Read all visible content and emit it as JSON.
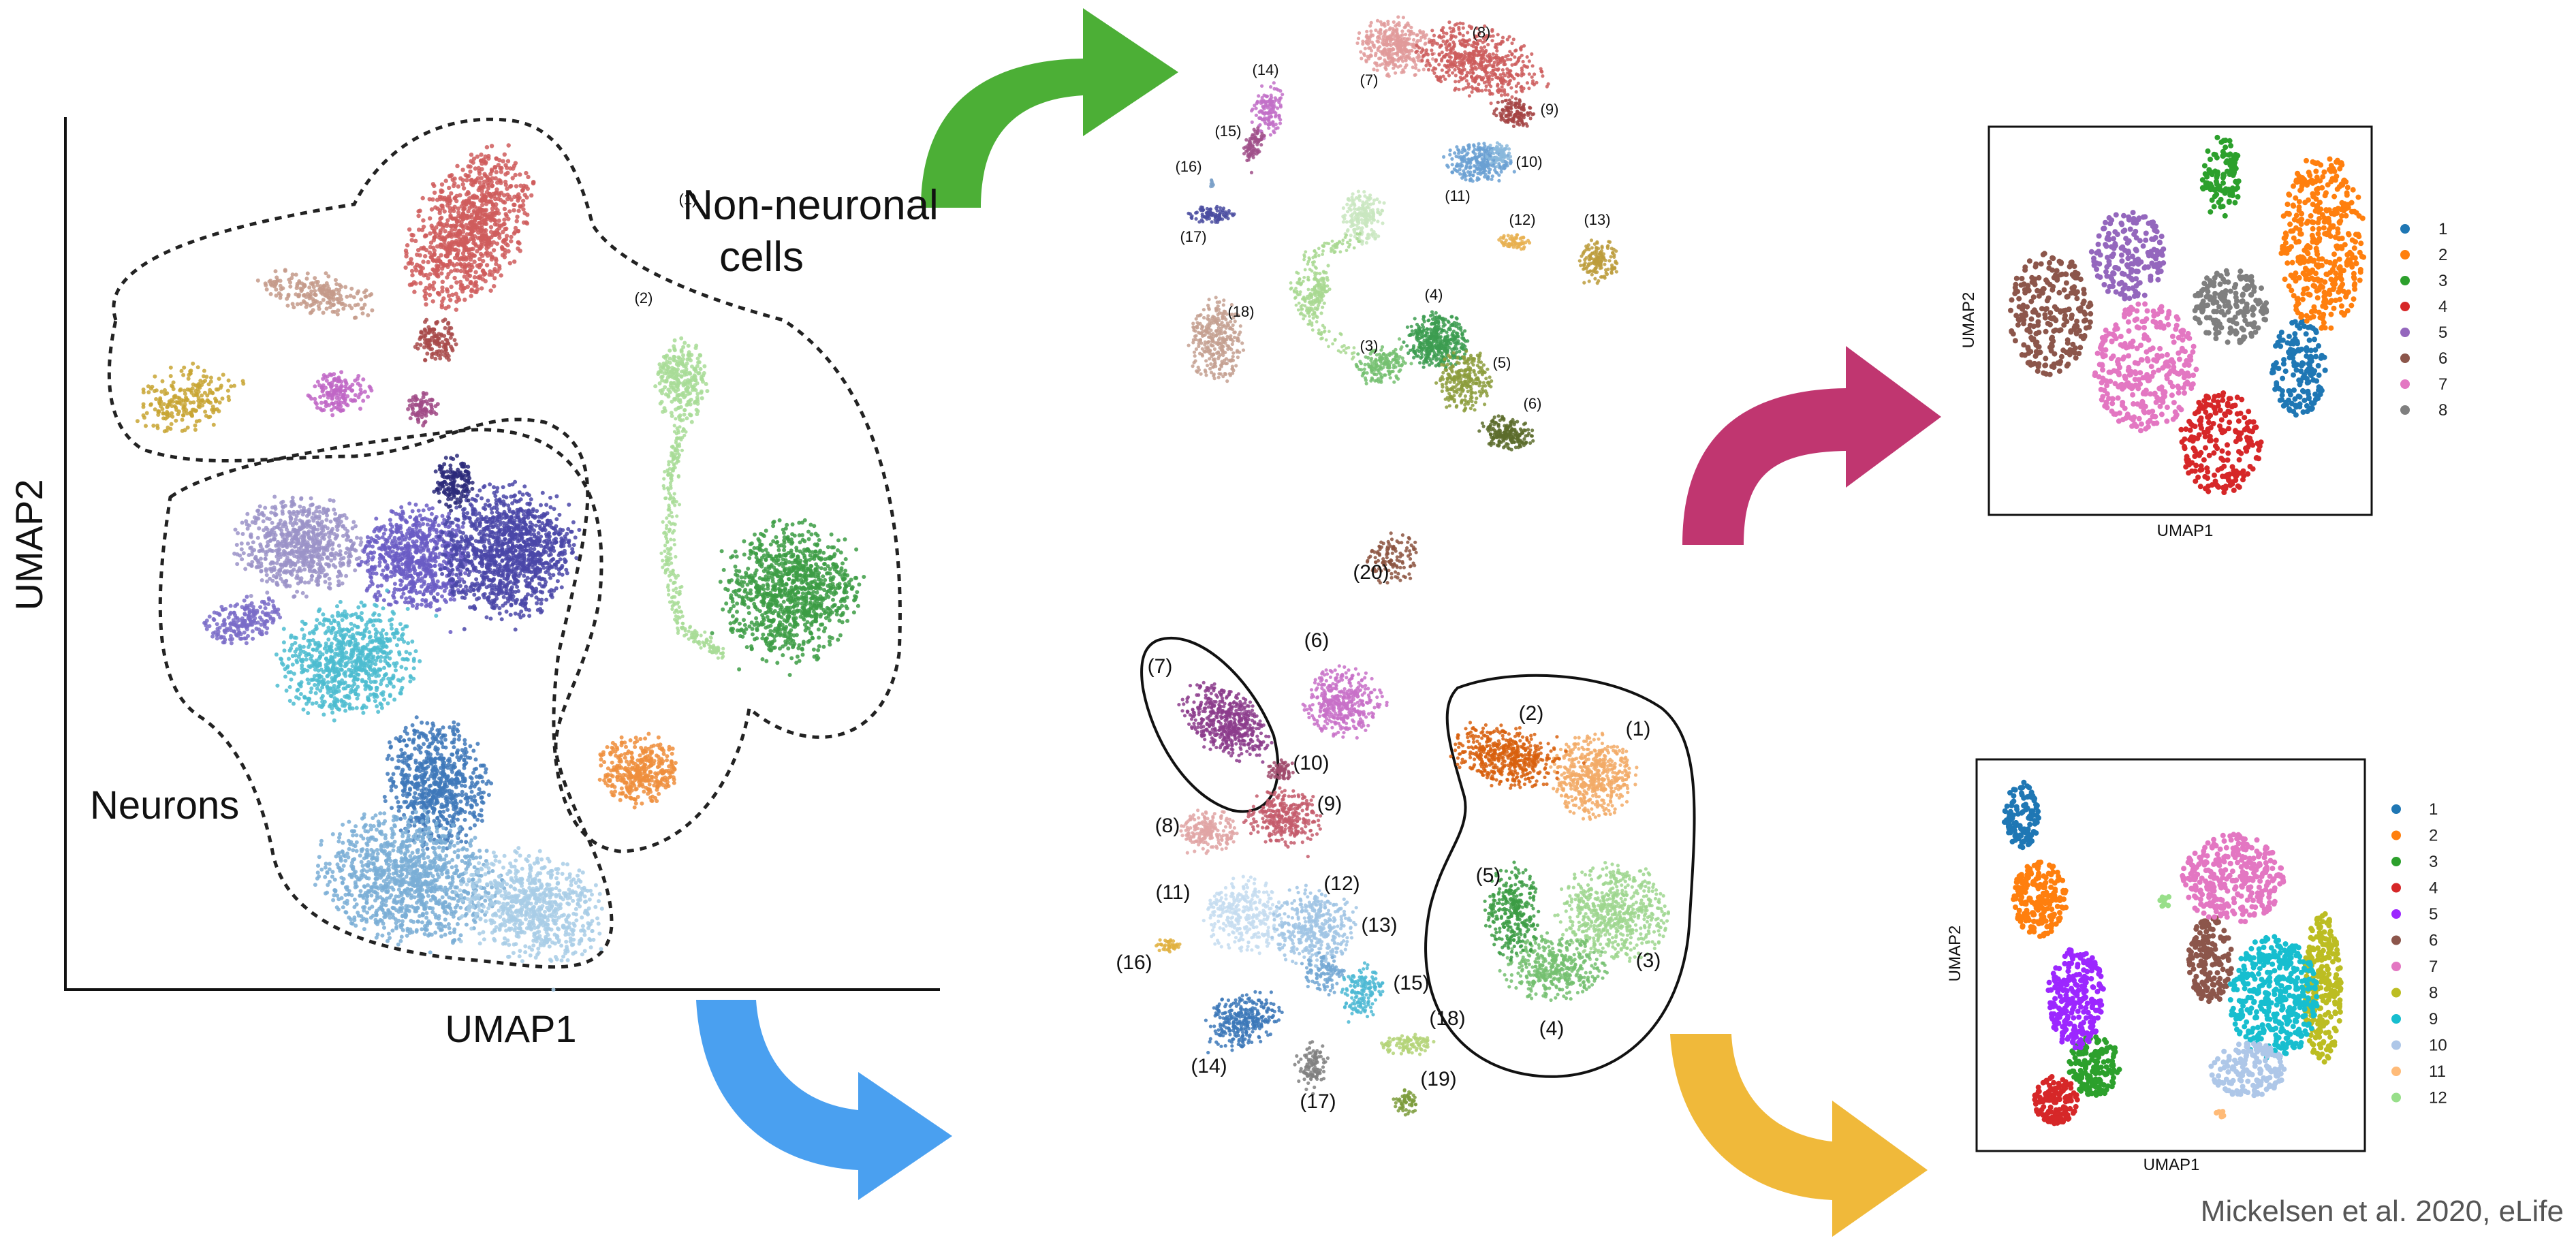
{
  "figure": {
    "citation": "Mickelsen et al. 2020, eLife",
    "main_xlabel": "UMAP1",
    "main_ylabel": "UMAP2",
    "group_nonneuronal_line1": "Non-neuronal",
    "group_nonneuronal_line2": "cells",
    "group_neurons": "Neurons",
    "sub1_xlabel": "UMAP1",
    "sub1_ylabel": "UMAP2",
    "sub2_xlabel": "UMAP1",
    "sub2_ylabel": "UMAP2"
  },
  "arrows": {
    "green": "#4caf36",
    "magenta": "#c03670",
    "blue": "#4aa0f0",
    "yellow": "#f0b93a"
  },
  "chart_data": [
    {
      "type": "scatter",
      "name": "main",
      "xlabel": "UMAP1",
      "ylabel": "UMAP2",
      "clusters": [
        {
          "color": "#cf5c5c"
        },
        {
          "color": "#c49a8a"
        },
        {
          "color": "#a84a4a"
        },
        {
          "color": "#c8a432"
        },
        {
          "color": "#c066c6"
        },
        {
          "color": "#a04a86"
        },
        {
          "color": "#9b93c8"
        },
        {
          "color": "#6a5cc4"
        },
        {
          "color": "#4a46a8"
        },
        {
          "color": "#2c2a7a"
        },
        {
          "color": "#7a6cc8"
        },
        {
          "color": "#4cbcd0"
        },
        {
          "color": "#3e78ba"
        },
        {
          "color": "#7aaed6"
        },
        {
          "color": "#a8cce6"
        },
        {
          "color": "#a8dc96"
        },
        {
          "color": "#3c9c44"
        },
        {
          "color": "#ef8e3c"
        }
      ]
    },
    {
      "type": "scatter",
      "name": "non-neuronal",
      "clusters": [
        {
          "label": "(1)",
          "color": "#c9e6c0"
        },
        {
          "label": "(2)",
          "color": "#a8d890"
        },
        {
          "label": "(3)",
          "color": "#74c070"
        },
        {
          "label": "(4)",
          "color": "#3c9c50"
        },
        {
          "label": "(5)",
          "color": "#8c9c3c"
        },
        {
          "label": "(6)",
          "color": "#5c6c2c"
        },
        {
          "label": "(7)",
          "color": "#e09a9a"
        },
        {
          "label": "(8)",
          "color": "#cc5c5c"
        },
        {
          "label": "(9)",
          "color": "#a44444"
        },
        {
          "label": "(10)",
          "color": "#6aa0d2"
        },
        {
          "label": "(11)",
          "color": "#8ab8dc"
        },
        {
          "label": "(12)",
          "color": "#e8b050"
        },
        {
          "label": "(13)",
          "color": "#bc9c3c"
        },
        {
          "label": "(14)",
          "color": "#c270c8"
        },
        {
          "label": "(15)",
          "color": "#a0508a"
        },
        {
          "label": "(16)",
          "color": "#7aa0c8"
        },
        {
          "label": "(17)",
          "color": "#4a4ca0"
        },
        {
          "label": "(18)",
          "color": "#c4a090"
        },
        {
          "label": "(20)",
          "color": "#8c5440"
        }
      ]
    },
    {
      "type": "scatter",
      "name": "non-neuronal-sub",
      "xlabel": "UMAP1",
      "ylabel": "UMAP2",
      "legend": [
        "1",
        "2",
        "3",
        "4",
        "5",
        "6",
        "7",
        "8"
      ],
      "colors": [
        "#1f77b4",
        "#ff7f0e",
        "#2ca02c",
        "#d62728",
        "#9467bd",
        "#8c564b",
        "#e377c2",
        "#7f7f7f"
      ]
    },
    {
      "type": "scatter",
      "name": "neurons",
      "clusters": [
        {
          "label": "(1)",
          "color": "#f2aa66"
        },
        {
          "label": "(2)",
          "color": "#d8600e"
        },
        {
          "label": "(3)",
          "color": "#9ed68e"
        },
        {
          "label": "(4)",
          "color": "#74c070"
        },
        {
          "label": "(5)",
          "color": "#3c9c44"
        },
        {
          "label": "(6)",
          "color": "#c870c8"
        },
        {
          "label": "(7)",
          "color": "#8c3c8c"
        },
        {
          "label": "(8)",
          "color": "#e0a4a4"
        },
        {
          "label": "(9)",
          "color": "#c45c6c"
        },
        {
          "label": "(10)",
          "color": "#a04a6c"
        },
        {
          "label": "(11)",
          "color": "#c4dcf0"
        },
        {
          "label": "(12)",
          "color": "#a0c4e4"
        },
        {
          "label": "(13)",
          "color": "#74a8d4"
        },
        {
          "label": "(14)",
          "color": "#3c78b8"
        },
        {
          "label": "(15)",
          "color": "#4cb8d4"
        },
        {
          "label": "(16)",
          "color": "#e0b040"
        },
        {
          "label": "(17)",
          "color": "#808080"
        },
        {
          "label": "(18)",
          "color": "#b4d478"
        },
        {
          "label": "(19)",
          "color": "#7c9c3c"
        }
      ]
    },
    {
      "type": "scatter",
      "name": "neurons-sub",
      "xlabel": "UMAP1",
      "ylabel": "UMAP2",
      "legend": [
        "1",
        "2",
        "3",
        "4",
        "5",
        "6",
        "7",
        "8",
        "9",
        "10",
        "11",
        "12"
      ],
      "colors": [
        "#1f77b4",
        "#ff7f0e",
        "#2ca02c",
        "#d62728",
        "#9c27ff",
        "#8c564b",
        "#e377c2",
        "#bcbd22",
        "#17becf",
        "#aec7e8",
        "#ffbb78",
        "#98df8a"
      ]
    }
  ]
}
